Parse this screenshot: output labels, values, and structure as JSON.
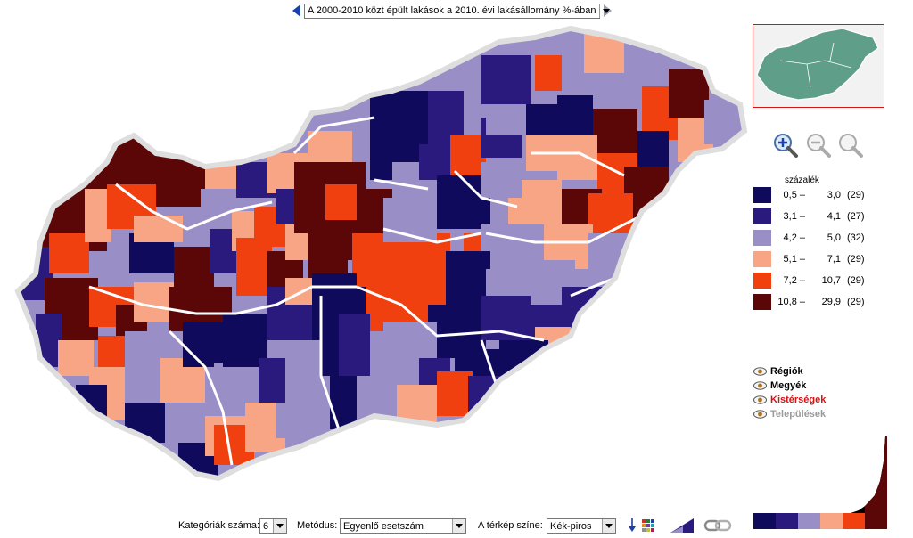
{
  "header": {
    "indicator_select": "A 2000-2010 közt épült lakások a 2010. évi lakásállomány %-ában"
  },
  "legend": {
    "unit": "százalék",
    "classes": [
      {
        "low": "0,5 –",
        "high": "3,0",
        "count": "(29)",
        "color": "#0f0a5c"
      },
      {
        "low": "3,1 –",
        "high": "4,1",
        "count": "(27)",
        "color": "#2a1a7e"
      },
      {
        "low": "4,2 –",
        "high": "5,0",
        "count": "(32)",
        "color": "#9a8ec6"
      },
      {
        "low": "5,1 –",
        "high": "7,1",
        "count": "(29)",
        "color": "#f7a585"
      },
      {
        "low": "7,2 –",
        "high": "10,7",
        "count": "(29)",
        "color": "#f04010"
      },
      {
        "low": "10,8 –",
        "high": "29,9",
        "count": "(29)",
        "color": "#5c0707"
      }
    ]
  },
  "layers": [
    {
      "label": "Régiók",
      "color": "#000000"
    },
    {
      "label": "Megyék",
      "color": "#000000"
    },
    {
      "label": "Kistérségek",
      "color": "#d01515"
    },
    {
      "label": "Települések",
      "color": "#9a9a9a"
    }
  ],
  "controls": {
    "categories_label": "Kategóriák száma:",
    "categories_value": "6",
    "method_label": "Metódus:",
    "method_value": "Egyenlő esetszám",
    "color_label": "A térkép színe:",
    "color_value": "Kék-piros"
  },
  "icons": {
    "zoom_in": "zoom-in-icon",
    "zoom_out": "zoom-out-icon",
    "zoom_reset": "zoom-reset-icon",
    "layer_eye": "eye-icon",
    "sort": "sort-icon",
    "palette": "palette-icon",
    "gradient": "gradient-icon",
    "link": "link-icon"
  }
}
